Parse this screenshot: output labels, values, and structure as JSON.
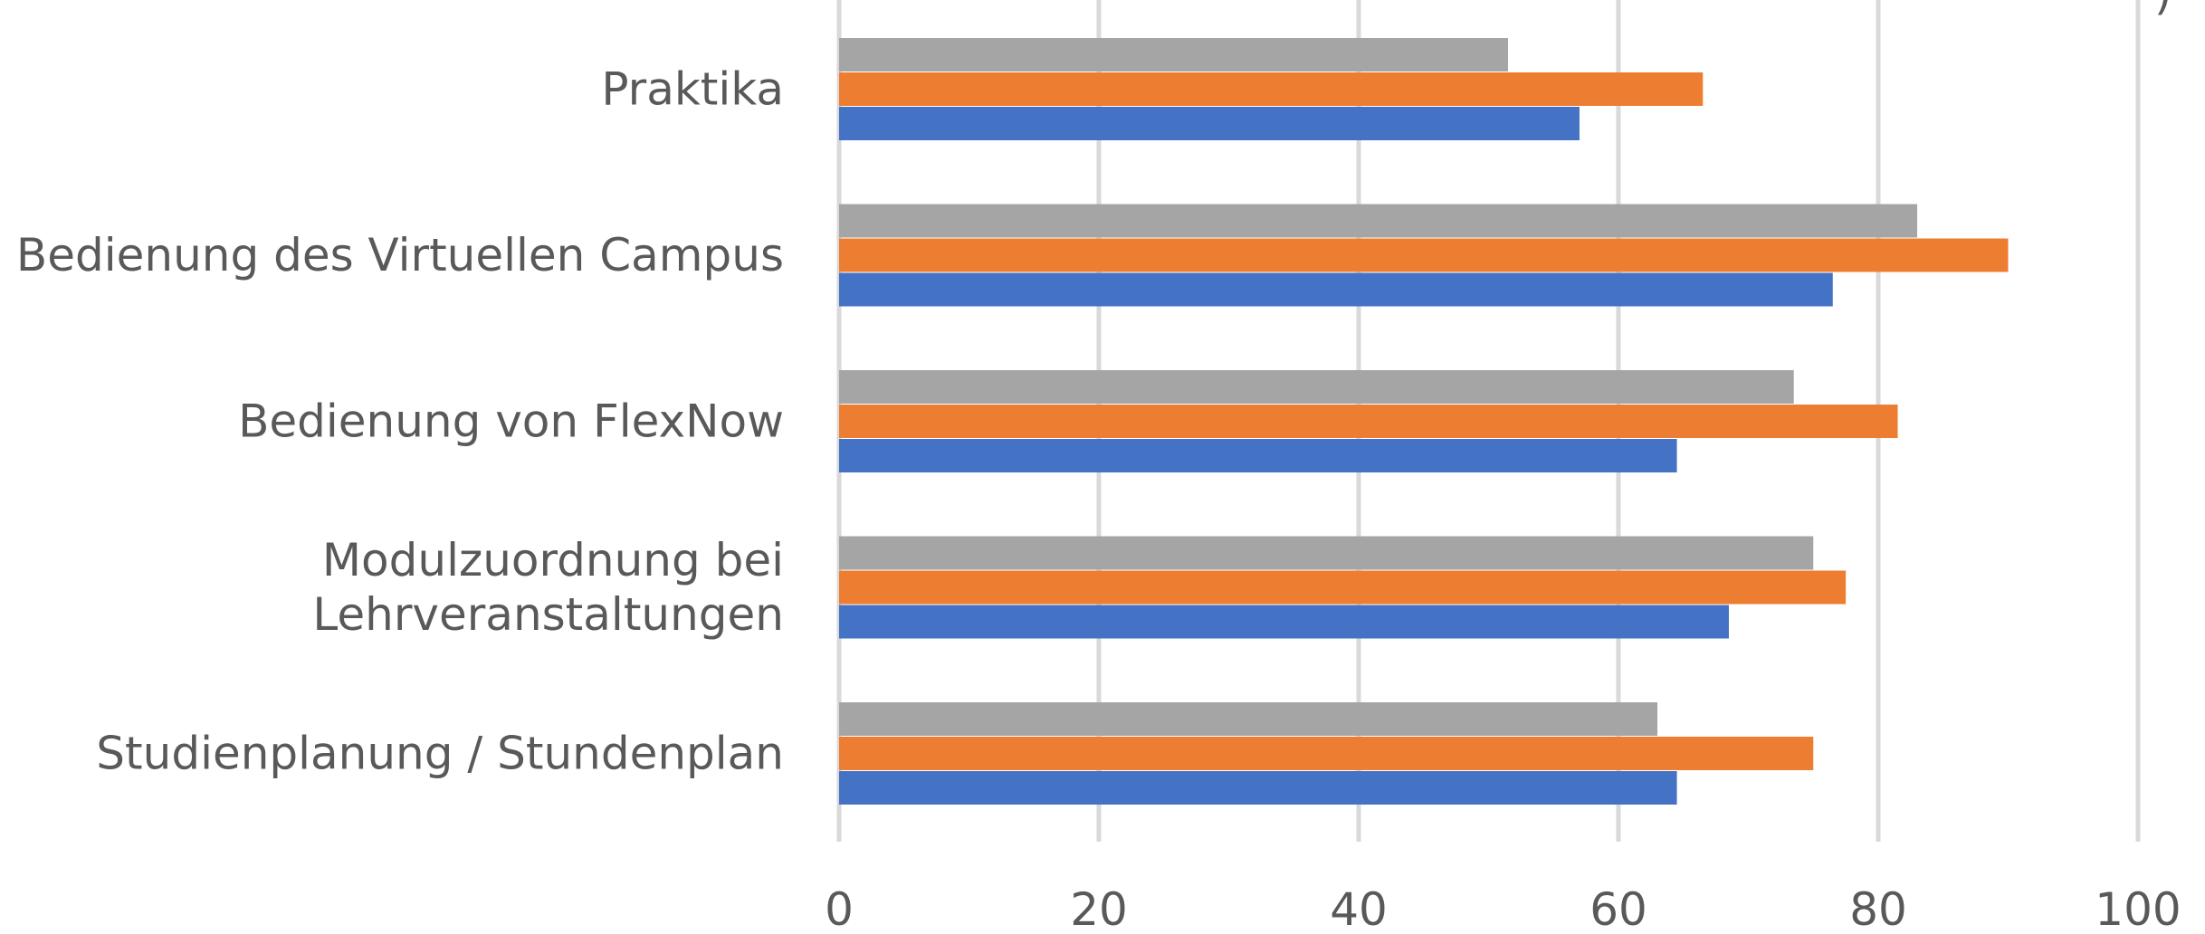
{
  "chart_data": {
    "type": "bar",
    "orientation": "horizontal",
    "categories": [
      [
        "Praktika"
      ],
      [
        "Bedienung des Virtuellen Campus"
      ],
      [
        "Bedienung von FlexNow"
      ],
      [
        "Modulzuordnung bei",
        "Lehrveranstaltungen"
      ],
      [
        "Studienplanung / Stundenplan"
      ]
    ],
    "series": [
      {
        "color": "#a5a5a5",
        "values": [
          51.5,
          83,
          73.5,
          75,
          63
        ]
      },
      {
        "color": "#ed7d31",
        "values": [
          66.5,
          90,
          81.5,
          77.5,
          75
        ]
      },
      {
        "color": "#4472c4",
        "values": [
          57,
          76.5,
          64.5,
          68.5,
          64.5
        ]
      }
    ],
    "xlim": [
      0,
      100
    ],
    "xticks": [
      "0",
      "20",
      "40",
      "60",
      "80",
      "100"
    ],
    "grid": true,
    "gridline_color": "#d9d9d9",
    "title": "",
    "xlabel": "",
    "ylabel": ""
  }
}
